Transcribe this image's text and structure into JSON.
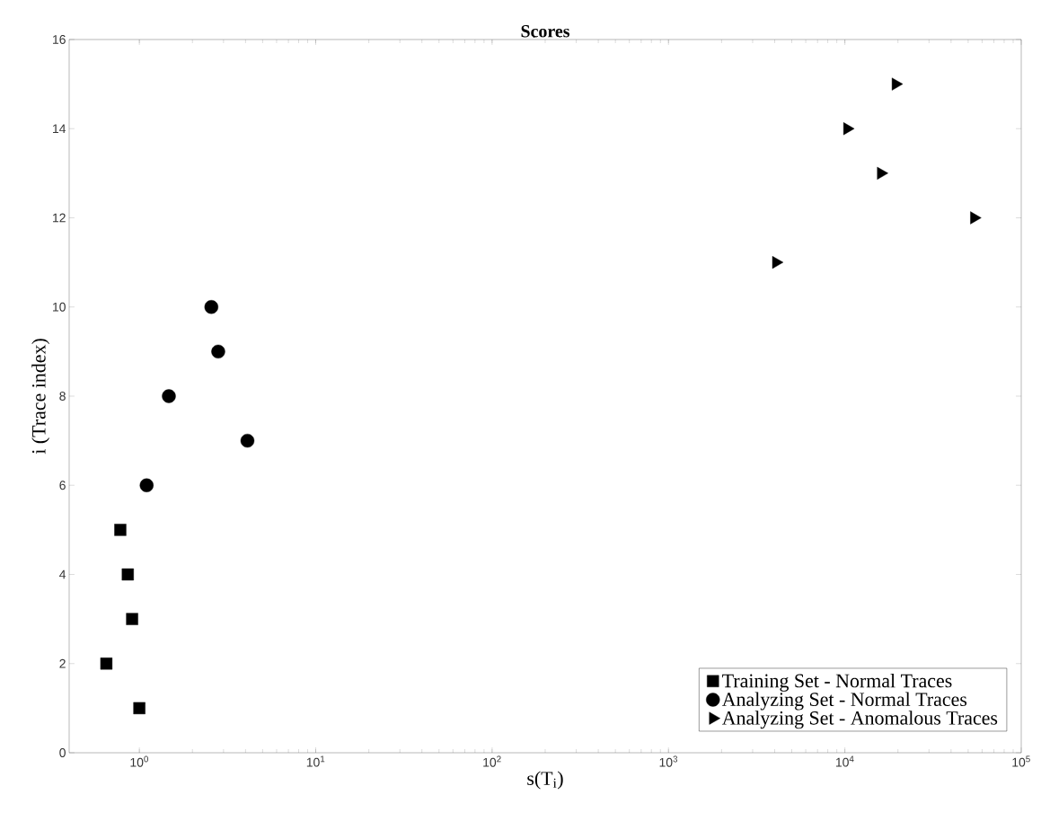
{
  "chart_data": {
    "type": "scatter",
    "title": "Scores",
    "xlabel": "s(T$_{i}$)",
    "ylabel": "i (Trace index)",
    "log": "x",
    "xlim": [
      0.4,
      100000
    ],
    "xticks": [
      {
        "value": 1,
        "label": "10$^{0}$"
      },
      {
        "value": 10,
        "label": "10$^{1}$"
      },
      {
        "value": 100,
        "label": "10$^{2}$"
      },
      {
        "value": 1000,
        "label": "10$^{3}$"
      },
      {
        "value": 10000,
        "label": "10$^{4}$"
      },
      {
        "value": 100000,
        "label": "10$^{5}$"
      }
    ],
    "ylim": [
      0,
      16
    ],
    "yticks": [
      0,
      2,
      4,
      6,
      8,
      10,
      12,
      14,
      16
    ],
    "legend": "bottom right",
    "grid": false,
    "series": [
      {
        "name": "Training Set - Normal Traces",
        "color": "#000000",
        "marker": "square",
        "x": [
          1.0,
          0.65,
          0.91,
          0.86,
          0.78
        ],
        "values": [
          1,
          2,
          3,
          4,
          5
        ]
      },
      {
        "name": "Analyzing Set - Normal Traces",
        "color": "#000000",
        "marker": "circle",
        "x": [
          1.1,
          4.1,
          1.47,
          2.8,
          2.56
        ],
        "values": [
          6,
          7,
          8,
          9,
          10
        ]
      },
      {
        "name": "Analyzing Set - Anomalous Traces",
        "color": "#000000",
        "marker": "triangle",
        "x": [
          4070,
          54000,
          16000,
          10300,
          19400
        ],
        "values": [
          11,
          12,
          13,
          14,
          15
        ]
      }
    ]
  }
}
